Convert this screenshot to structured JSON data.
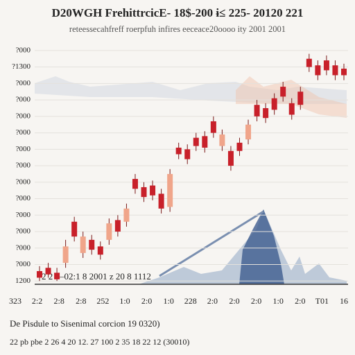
{
  "chart_data": {
    "type": "candlestick",
    "title": "D20WGH FrehittrcicE- 18$-200 ɨ≤ 225- 20120 221",
    "subtitle": "reteessecahfreff roerpfuh infires eeceace20oooo ity 2001 2001",
    "annotation": "2 2  —02:1 8 2001 z 20 8 1112",
    "caption": "De  Pisdule to Sisenimal corcion  19 0320)",
    "footer": "22 pb pbe 2 26 4 20 12. 27 100 2 35 18 22 12 (30010)",
    "categories": [
      "323",
      "2:2",
      "2:8",
      "2:8",
      "252",
      "1:0",
      "2:0",
      "1:0",
      "228",
      "2:0",
      "2:0",
      "2:0",
      "1:0",
      "2:0",
      "T01",
      "16"
    ],
    "ylim": [
      -0.2,
      14.5
    ],
    "yticks": [
      {
        "value": 0,
        "label": "1200"
      },
      {
        "value": 1,
        "label": "?000"
      },
      {
        "value": 2,
        "label": "?000"
      },
      {
        "value": 3,
        "label": "?000"
      },
      {
        "value": 4,
        "label": "?000"
      },
      {
        "value": 5,
        "label": "?000"
      },
      {
        "value": 6,
        "label": "?000"
      },
      {
        "value": 7,
        "label": "?000"
      },
      {
        "value": 8,
        "label": "?000"
      },
      {
        "value": 9,
        "label": "?000"
      },
      {
        "value": 10,
        "label": "?000"
      },
      {
        "value": 11,
        "label": "?000"
      },
      {
        "value": 12,
        "label": "?000"
      },
      {
        "value": 13,
        "label": "?1300"
      },
      {
        "value": 14,
        "label": "?000"
      }
    ],
    "grid": true,
    "candles": [
      {
        "open": 0.2,
        "close": 0.6,
        "high": 0.9,
        "low": 0.0,
        "color": "#c8202a"
      },
      {
        "open": 0.4,
        "close": 0.8,
        "high": 1.1,
        "low": 0.2,
        "color": "#c8202a"
      },
      {
        "open": 0.1,
        "close": 0.5,
        "high": 0.8,
        "low": 0.0,
        "color": "#c8202a"
      },
      {
        "open": 1.1,
        "close": 2.1,
        "high": 2.5,
        "low": 0.8,
        "color": "#f0a58a"
      },
      {
        "open": 2.7,
        "close": 3.6,
        "high": 3.9,
        "low": 2.4,
        "color": "#c8202a"
      },
      {
        "open": 1.7,
        "close": 2.7,
        "high": 3.0,
        "low": 1.4,
        "color": "#f0a58a"
      },
      {
        "open": 1.9,
        "close": 2.5,
        "high": 2.8,
        "low": 1.6,
        "color": "#c8202a"
      },
      {
        "open": 1.6,
        "close": 2.1,
        "high": 2.4,
        "low": 1.3,
        "color": "#c8202a"
      },
      {
        "open": 2.5,
        "close": 3.5,
        "high": 3.8,
        "low": 2.2,
        "color": "#f0a58a"
      },
      {
        "open": 3.0,
        "close": 3.7,
        "high": 4.0,
        "low": 2.7,
        "color": "#c8202a"
      },
      {
        "open": 3.6,
        "close": 4.4,
        "high": 4.7,
        "low": 3.3,
        "color": "#f0a58a"
      },
      {
        "open": 5.6,
        "close": 6.2,
        "high": 6.5,
        "low": 5.3,
        "color": "#c8202a"
      },
      {
        "open": 5.1,
        "close": 5.7,
        "high": 6.0,
        "low": 4.8,
        "color": "#c8202a"
      },
      {
        "open": 5.2,
        "close": 5.8,
        "high": 6.1,
        "low": 4.9,
        "color": "#c8202a"
      },
      {
        "open": 4.4,
        "close": 5.3,
        "high": 5.6,
        "low": 4.1,
        "color": "#c8202a"
      },
      {
        "open": 4.5,
        "close": 6.5,
        "high": 6.8,
        "low": 4.2,
        "color": "#f0a58a"
      },
      {
        "open": 7.7,
        "close": 8.1,
        "high": 8.4,
        "low": 7.4,
        "color": "#c8202a"
      },
      {
        "open": 7.4,
        "close": 8.0,
        "high": 8.3,
        "low": 7.1,
        "color": "#c8202a"
      },
      {
        "open": 8.2,
        "close": 8.7,
        "high": 9.0,
        "low": 7.9,
        "color": "#c8202a"
      },
      {
        "open": 8.1,
        "close": 8.8,
        "high": 9.1,
        "low": 7.8,
        "color": "#c8202a"
      },
      {
        "open": 9.0,
        "close": 9.7,
        "high": 10.0,
        "low": 8.7,
        "color": "#c8202a"
      },
      {
        "open": 8.2,
        "close": 8.9,
        "high": 9.2,
        "low": 7.9,
        "color": "#f0a58a"
      },
      {
        "open": 7.0,
        "close": 7.9,
        "high": 8.2,
        "low": 6.7,
        "color": "#c8202a"
      },
      {
        "open": 7.9,
        "close": 8.4,
        "high": 8.7,
        "low": 7.6,
        "color": "#c8202a"
      },
      {
        "open": 8.6,
        "close": 9.5,
        "high": 9.8,
        "low": 8.3,
        "color": "#f0a58a"
      },
      {
        "open": 10.0,
        "close": 10.7,
        "high": 11.0,
        "low": 9.7,
        "color": "#c8202a"
      },
      {
        "open": 9.9,
        "close": 10.5,
        "high": 10.8,
        "low": 9.6,
        "color": "#c8202a"
      },
      {
        "open": 10.4,
        "close": 11.1,
        "high": 11.4,
        "low": 10.1,
        "color": "#c8202a"
      },
      {
        "open": 11.2,
        "close": 11.8,
        "high": 12.1,
        "low": 10.9,
        "color": "#c8202a"
      },
      {
        "open": 10.1,
        "close": 10.8,
        "high": 11.1,
        "low": 9.8,
        "color": "#c8202a"
      },
      {
        "open": 10.7,
        "close": 11.5,
        "high": 11.8,
        "low": 10.4,
        "color": "#c8202a"
      },
      {
        "open": 13.0,
        "close": 13.5,
        "high": 13.8,
        "low": 12.7,
        "color": "#c8202a"
      },
      {
        "open": 12.5,
        "close": 13.1,
        "high": 13.4,
        "low": 12.2,
        "color": "#c8202a"
      },
      {
        "open": 12.8,
        "close": 13.4,
        "high": 13.7,
        "low": 12.5,
        "color": "#c8202a"
      },
      {
        "open": 12.5,
        "close": 13.1,
        "high": 13.4,
        "low": 12.2,
        "color": "#c8202a"
      },
      {
        "open": 12.5,
        "close": 12.9,
        "high": 13.2,
        "low": 12.2,
        "color": "#c8202a"
      }
    ]
  }
}
